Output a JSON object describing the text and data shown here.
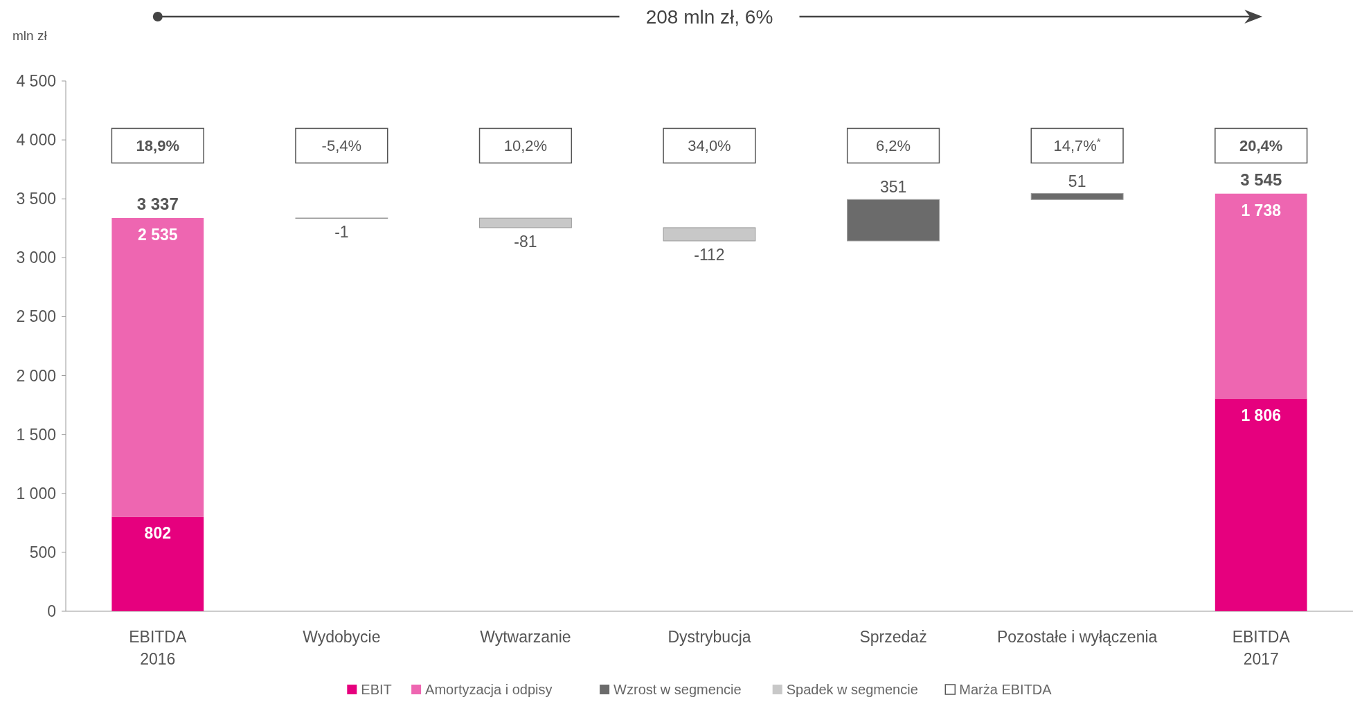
{
  "chart_data": {
    "type": "bar",
    "stacked": true,
    "ylabel": "mln zł",
    "categories": [
      "EBITDA\n2016",
      "Wydobycie",
      "Wytwarzanie",
      "Dystrybucja",
      "Sprzedaż",
      "Pozostałe i wyłączenia",
      "EBITDA\n2017"
    ],
    "series": [
      {
        "name": "EBIT",
        "color": "#e6007e",
        "values": [
          802,
          null,
          null,
          null,
          null,
          null,
          1806
        ],
        "value_labels": [
          "802",
          null,
          null,
          null,
          null,
          null,
          "1 806"
        ]
      },
      {
        "name": "Amortyzacja i odpisy",
        "color": "#ee66b1",
        "values": [
          2535,
          null,
          null,
          null,
          null,
          null,
          1738
        ],
        "value_labels": [
          "2 535",
          null,
          null,
          null,
          null,
          null,
          "1 738"
        ]
      },
      {
        "name": "Wzrost w segmencie",
        "color": "#6b6b6b",
        "values": [
          null,
          null,
          null,
          null,
          351,
          51,
          null
        ],
        "base": [
          null,
          null,
          null,
          null,
          3143,
          3494,
          null
        ],
        "value_labels": [
          null,
          null,
          null,
          null,
          "351",
          "51",
          null
        ]
      },
      {
        "name": "Spadek w segmencie",
        "color": "#c8c8c8",
        "values": [
          null,
          -1,
          -81,
          -112,
          null,
          null,
          null
        ],
        "base": [
          null,
          3337,
          3336,
          3255,
          null,
          null,
          null
        ],
        "value_labels": [
          null,
          "-1",
          "-81",
          "-112",
          null,
          null,
          null
        ]
      },
      {
        "name": "Marża EBITDA",
        "color": "#ffffff",
        "type": "other",
        "values": [
          null,
          null,
          null,
          null,
          null,
          null,
          null
        ],
        "value_labels": [
          "18,9%",
          "-5,4%",
          "10,2%",
          "34,0%",
          "6,2%",
          "14,7%$^{*}$",
          "20,4%"
        ]
      }
    ],
    "totals": [
      "3 337",
      null,
      null,
      null,
      null,
      null,
      "3 545"
    ],
    "ylim": [
      0,
      4500
    ],
    "yticks": [
      {
        "value": 0,
        "label": "0"
      },
      {
        "value": 500,
        "label": "500"
      },
      {
        "value": 1000,
        "label": "1 000"
      },
      {
        "value": 1500,
        "label": "1 500"
      },
      {
        "value": 2000,
        "label": "2 000"
      },
      {
        "value": 2500,
        "label": "2 500"
      },
      {
        "value": 3000,
        "label": "3 000"
      },
      {
        "value": 3500,
        "label": "3 500"
      },
      {
        "value": 4000,
        "label": "4 000"
      },
      {
        "value": 4500,
        "label": "4 500"
      }
    ],
    "grid": false,
    "legend": "bottom",
    "annotations": [
      "208 mln zł, 6%"
    ]
  }
}
